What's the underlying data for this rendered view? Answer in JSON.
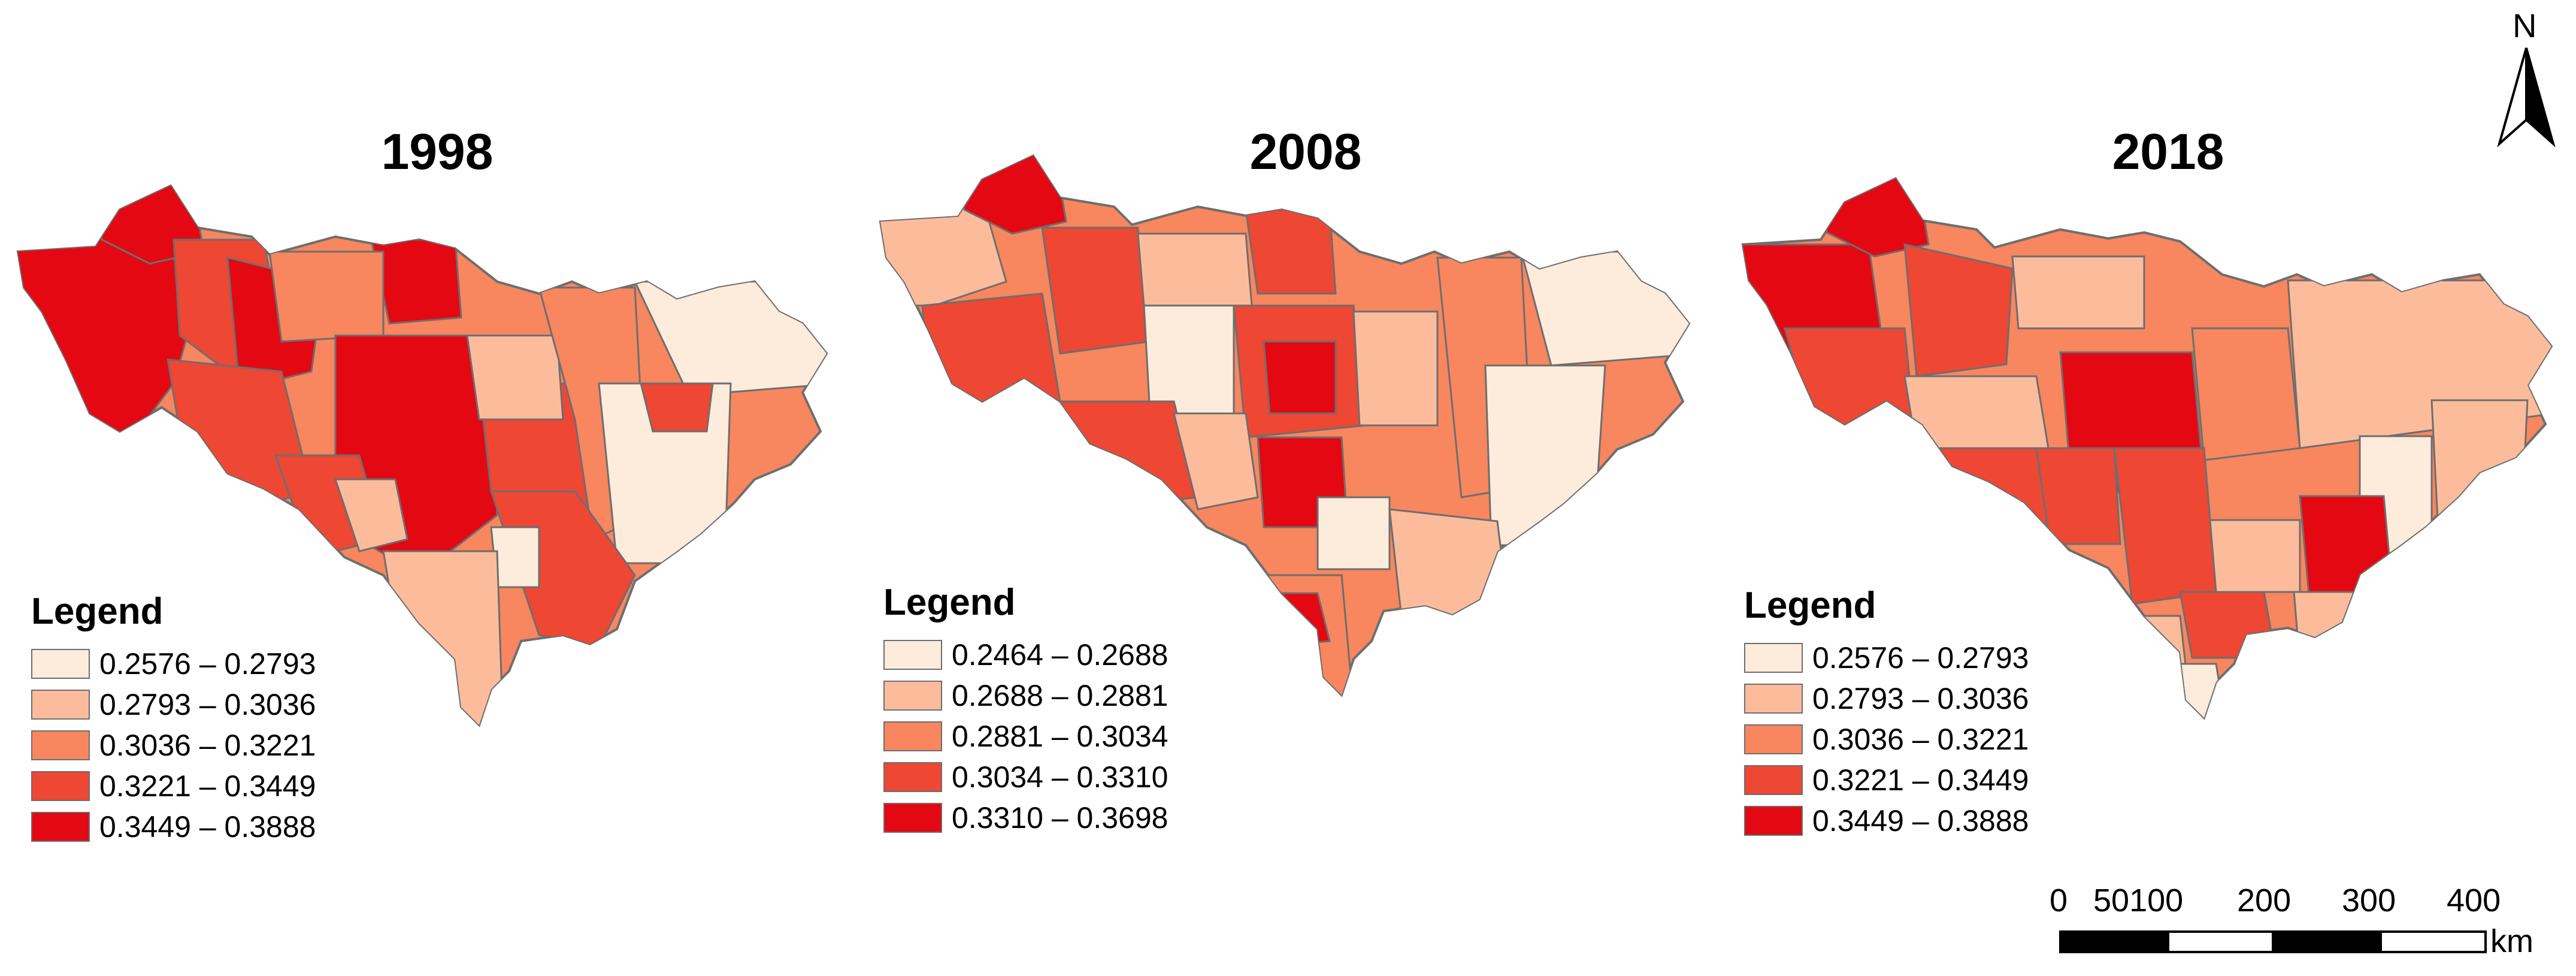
{
  "maps": [
    {
      "title": "1998",
      "legend_title": "Legend",
      "legend": [
        {
          "label": "0.2576 – 0.2793",
          "color": "#fdebdb"
        },
        {
          "label": "0.2793 – 0.3036",
          "color": "#fcbc9c"
        },
        {
          "label": "0.3036 – 0.3221",
          "color": "#f8865f"
        },
        {
          "label": "0.3221 – 0.3449",
          "color": "#ee4734"
        },
        {
          "label": "0.3449 – 0.3888",
          "color": "#e30812"
        }
      ]
    },
    {
      "title": "2008",
      "legend_title": "Legend",
      "legend": [
        {
          "label": "0.2464 – 0.2688",
          "color": "#fdebdb"
        },
        {
          "label": "0.2688 – 0.2881",
          "color": "#fcbc9c"
        },
        {
          "label": "0.2881 – 0.3034",
          "color": "#f8865f"
        },
        {
          "label": "0.3034 – 0.3310",
          "color": "#ee4734"
        },
        {
          "label": "0.3310 – 0.3698",
          "color": "#e30812"
        }
      ]
    },
    {
      "title": "2018",
      "legend_title": "Legend",
      "legend": [
        {
          "label": "0.2576 – 0.2793",
          "color": "#fdebdb"
        },
        {
          "label": "0.2793 – 0.3036",
          "color": "#fcbc9c"
        },
        {
          "label": "0.3036 – 0.3221",
          "color": "#f8865f"
        },
        {
          "label": "0.3221 – 0.3449",
          "color": "#ee4734"
        },
        {
          "label": "0.3449 – 0.3888",
          "color": "#e30812"
        }
      ]
    }
  ],
  "north_arrow": {
    "label": "N",
    "icon": "north-arrow-icon"
  },
  "scale_bar": {
    "ticks": [
      "0",
      "50100",
      "200",
      "300",
      "400"
    ],
    "unit": "km"
  }
}
